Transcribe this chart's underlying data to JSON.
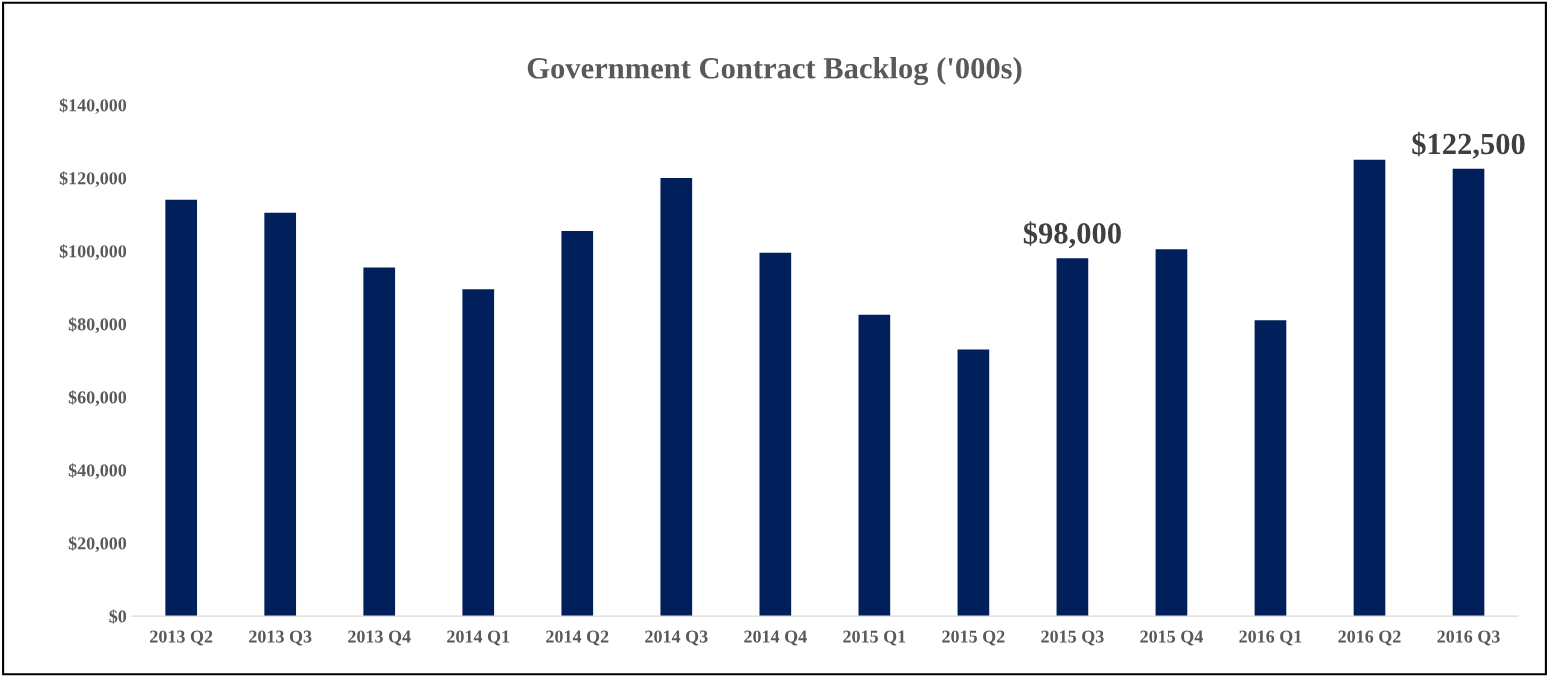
{
  "chart_data": {
    "type": "bar",
    "title": "Government Contract Backlog ('000s)",
    "categories": [
      "2013 Q2",
      "2013 Q3",
      "2013 Q4",
      "2014 Q1",
      "2014 Q2",
      "2014 Q3",
      "2014 Q4",
      "2015 Q1",
      "2015 Q2",
      "2015 Q3",
      "2015 Q4",
      "2016 Q1",
      "2016 Q2",
      "2016 Q3"
    ],
    "values": [
      114000,
      110500,
      95500,
      89500,
      105500,
      120000,
      99500,
      82500,
      73000,
      98000,
      100500,
      81000,
      125000,
      122500
    ],
    "value_labels": [
      null,
      null,
      null,
      null,
      null,
      null,
      null,
      null,
      null,
      "$98,000",
      null,
      null,
      null,
      "$122,500"
    ],
    "color": "#001f5b",
    "ylim": [
      0,
      140000
    ],
    "yticks": [
      {
        "value": 0,
        "label": "$0"
      },
      {
        "value": 20000,
        "label": "$20,000"
      },
      {
        "value": 40000,
        "label": "$40,000"
      },
      {
        "value": 60000,
        "label": "$60,000"
      },
      {
        "value": 80000,
        "label": "$80,000"
      },
      {
        "value": 100000,
        "label": "$100,000"
      },
      {
        "value": 120000,
        "label": "$120,000"
      },
      {
        "value": 140000,
        "label": "$140,000"
      }
    ],
    "grid": false,
    "legend": false
  }
}
